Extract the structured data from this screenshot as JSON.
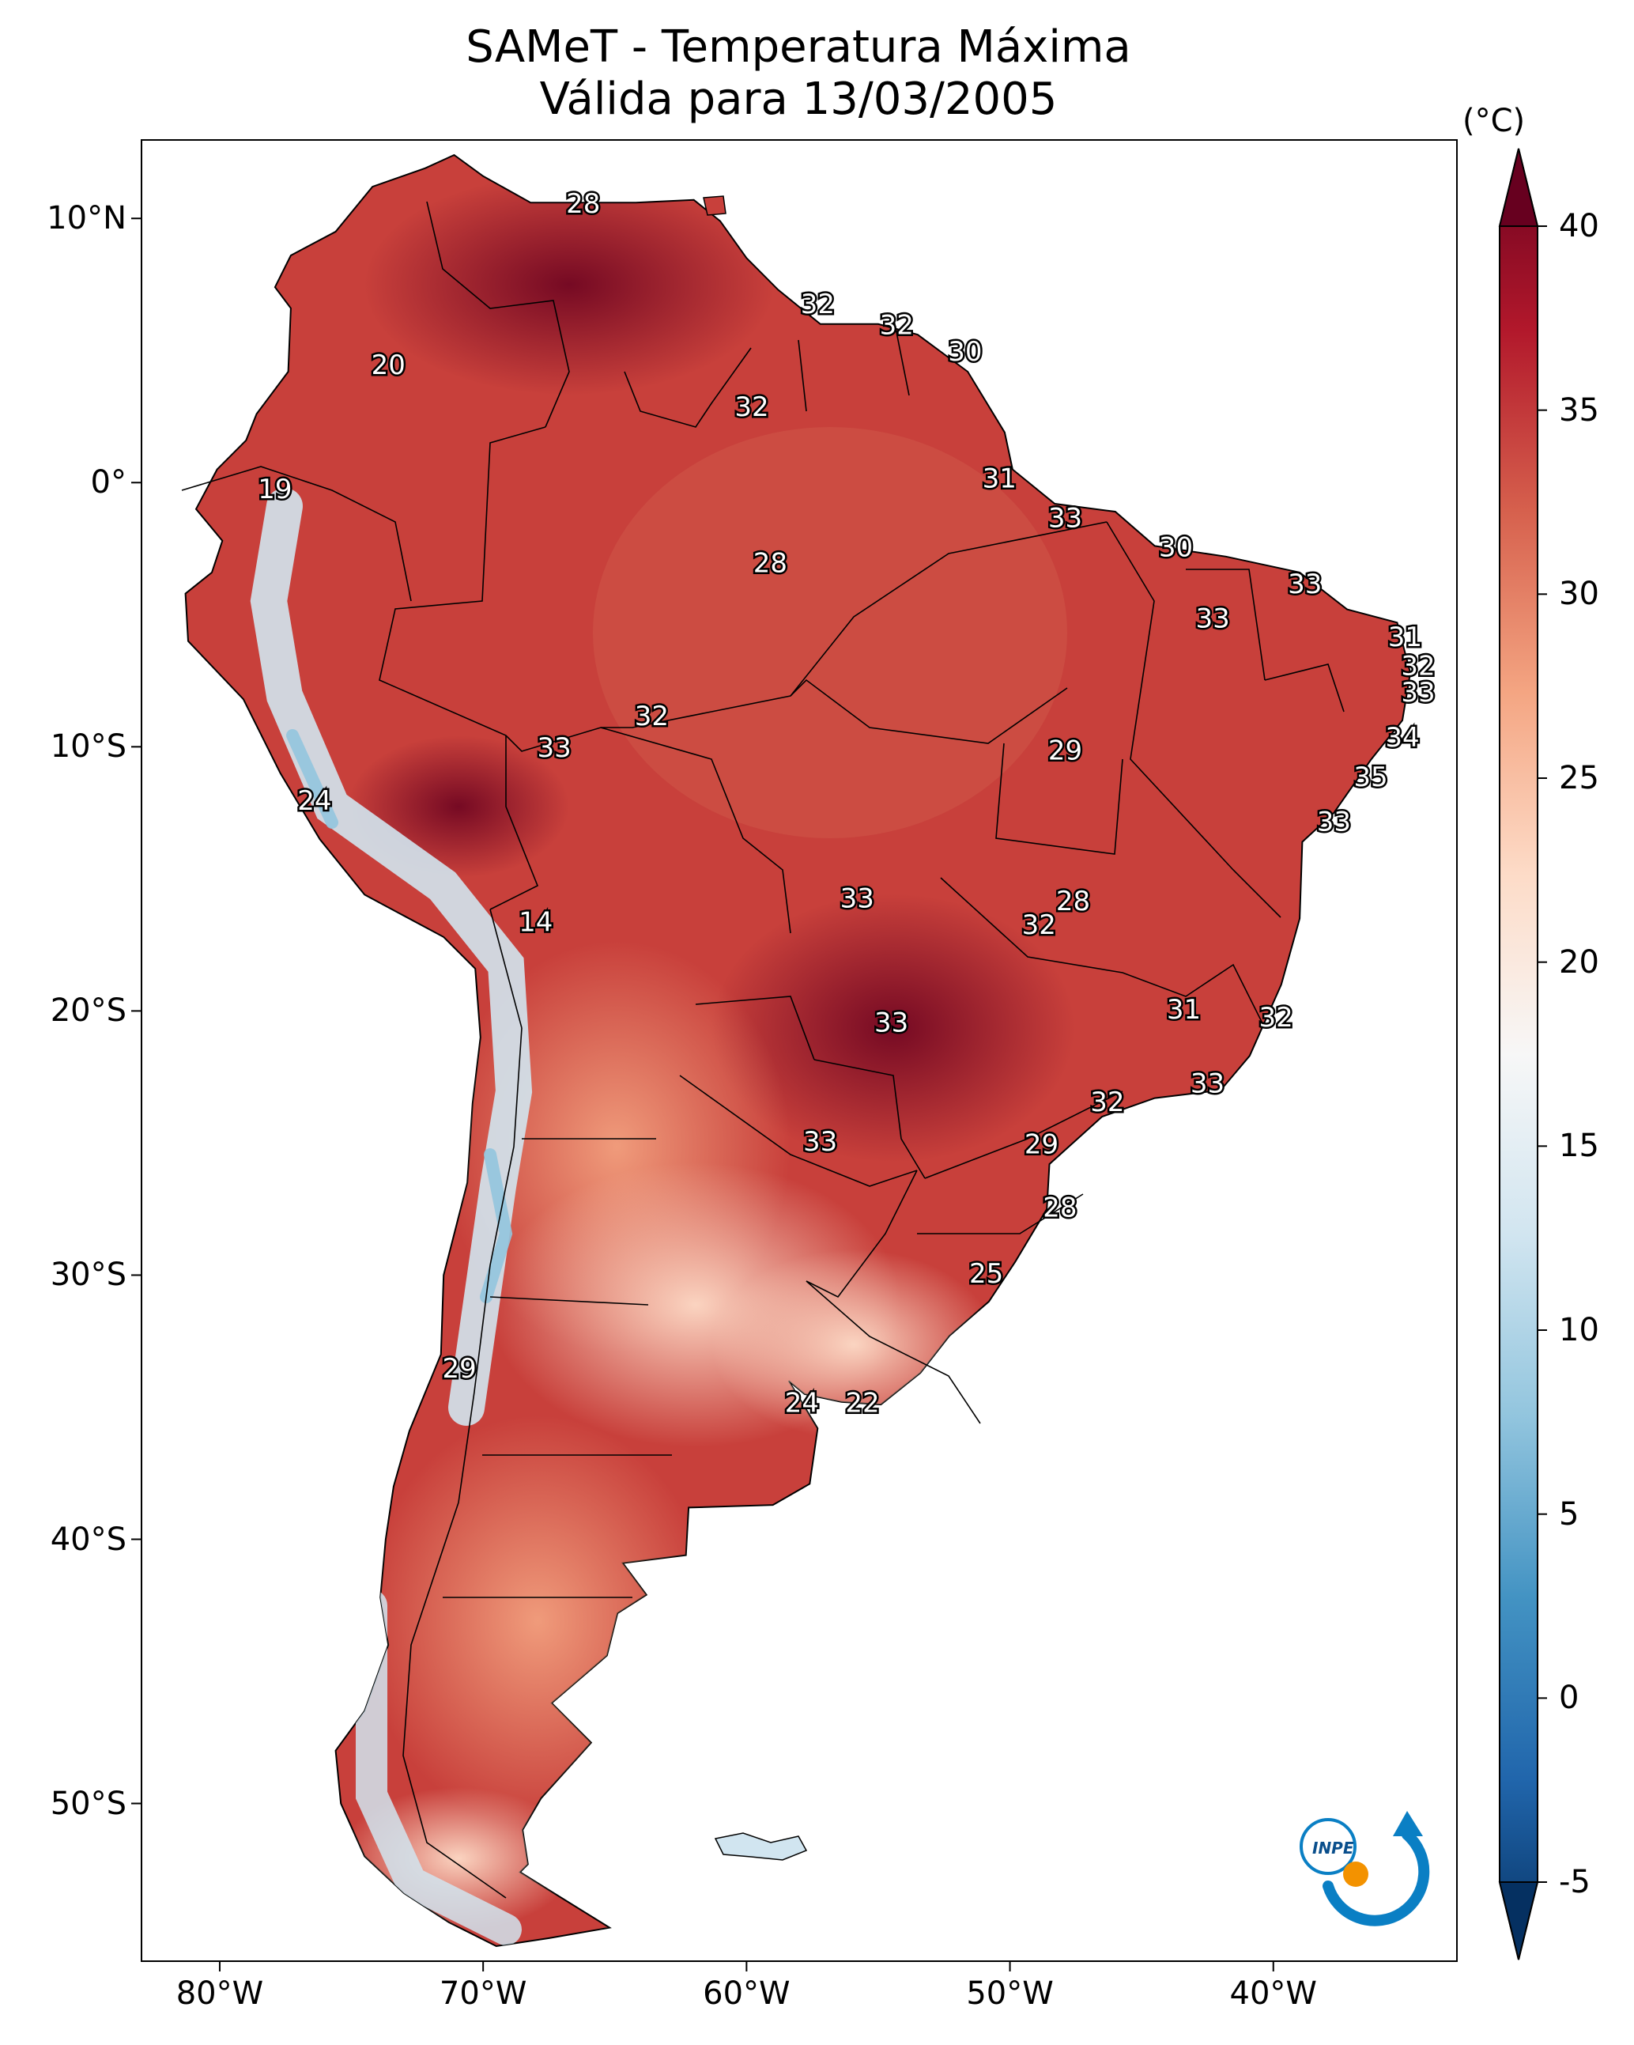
{
  "title": {
    "line1": "SAMeT - Temperatura Máxima",
    "line2": "Válida para 13/03/2005"
  },
  "map": {
    "lon_range": [
      -83,
      -33
    ],
    "lat_range": [
      -56,
      13
    ],
    "lat_ticks": [
      {
        "value": 10,
        "label": "10°N"
      },
      {
        "value": 0,
        "label": "0°"
      },
      {
        "value": -10,
        "label": "10°S"
      },
      {
        "value": -20,
        "label": "20°S"
      },
      {
        "value": -30,
        "label": "30°S"
      },
      {
        "value": -40,
        "label": "40°S"
      },
      {
        "value": -50,
        "label": "50°S"
      }
    ],
    "lon_ticks": [
      {
        "value": -80,
        "label": "80°W"
      },
      {
        "value": -70,
        "label": "70°W"
      },
      {
        "value": -60,
        "label": "60°W"
      },
      {
        "value": -50,
        "label": "50°W"
      },
      {
        "value": -40,
        "label": "40°W"
      }
    ],
    "point_labels": [
      {
        "text": "28",
        "lon": -66.2,
        "lat": 10.5
      },
      {
        "text": "32",
        "lon": -57.3,
        "lat": 6.7
      },
      {
        "text": "32",
        "lon": -54.3,
        "lat": 5.9
      },
      {
        "text": "30",
        "lon": -51.7,
        "lat": 4.9
      },
      {
        "text": "20",
        "lon": -73.6,
        "lat": 4.4
      },
      {
        "text": "32",
        "lon": -59.8,
        "lat": 2.8
      },
      {
        "text": "31",
        "lon": -50.4,
        "lat": 0.1
      },
      {
        "text": "19",
        "lon": -77.9,
        "lat": -0.3
      },
      {
        "text": "33",
        "lon": -47.9,
        "lat": -1.4
      },
      {
        "text": "30",
        "lon": -43.7,
        "lat": -2.5
      },
      {
        "text": "28",
        "lon": -59.1,
        "lat": -3.1
      },
      {
        "text": "33",
        "lon": -38.8,
        "lat": -3.9
      },
      {
        "text": "33",
        "lon": -42.3,
        "lat": -5.2
      },
      {
        "text": "31",
        "lon": -35.0,
        "lat": -5.9
      },
      {
        "text": "32",
        "lon": -34.5,
        "lat": -7.0
      },
      {
        "text": "33",
        "lon": -34.5,
        "lat": -8.0
      },
      {
        "text": "32",
        "lon": -63.6,
        "lat": -8.9
      },
      {
        "text": "34",
        "lon": -35.1,
        "lat": -9.7
      },
      {
        "text": "33",
        "lon": -67.3,
        "lat": -10.1
      },
      {
        "text": "29",
        "lon": -47.9,
        "lat": -10.2
      },
      {
        "text": "35",
        "lon": -36.3,
        "lat": -11.2
      },
      {
        "text": "24",
        "lon": -76.4,
        "lat": -12.1
      },
      {
        "text": "33",
        "lon": -37.7,
        "lat": -12.9
      },
      {
        "text": "33",
        "lon": -55.8,
        "lat": -15.8
      },
      {
        "text": "28",
        "lon": -47.6,
        "lat": -15.9
      },
      {
        "text": "14",
        "lon": -68.0,
        "lat": -16.7
      },
      {
        "text": "32",
        "lon": -48.9,
        "lat": -16.8
      },
      {
        "text": "31",
        "lon": -43.4,
        "lat": -20.0
      },
      {
        "text": "32",
        "lon": -39.9,
        "lat": -20.3
      },
      {
        "text": "33",
        "lon": -54.5,
        "lat": -20.5
      },
      {
        "text": "33",
        "lon": -42.5,
        "lat": -22.8
      },
      {
        "text": "32",
        "lon": -46.3,
        "lat": -23.5
      },
      {
        "text": "33",
        "lon": -57.2,
        "lat": -25.0
      },
      {
        "text": "29",
        "lon": -48.8,
        "lat": -25.1
      },
      {
        "text": "28",
        "lon": -48.1,
        "lat": -27.5
      },
      {
        "text": "25",
        "lon": -50.9,
        "lat": -30.0
      },
      {
        "text": "29",
        "lon": -70.9,
        "lat": -33.6
      },
      {
        "text": "24",
        "lon": -57.9,
        "lat": -34.9
      },
      {
        "text": "22",
        "lon": -55.6,
        "lat": -34.9
      }
    ]
  },
  "colorbar": {
    "unit": "(°C)",
    "min": -5,
    "max": 40,
    "ticks": [
      {
        "value": 40,
        "label": "40"
      },
      {
        "value": 35,
        "label": "35"
      },
      {
        "value": 30,
        "label": "30"
      },
      {
        "value": 25,
        "label": "25"
      },
      {
        "value": 20,
        "label": "20"
      },
      {
        "value": 15,
        "label": "15"
      },
      {
        "value": 10,
        "label": "10"
      },
      {
        "value": 5,
        "label": "5"
      },
      {
        "value": 0,
        "label": "0"
      },
      {
        "value": -5,
        "label": "-5"
      }
    ],
    "colors": [
      "#053061",
      "#2166ac",
      "#4393c3",
      "#92c5de",
      "#d1e5f0",
      "#f7f7f7",
      "#fddbc7",
      "#f4a582",
      "#d6604d",
      "#b2182b",
      "#67001f"
    ]
  },
  "logo": {
    "text": "INPE",
    "blue": "#0a7fc4",
    "orange": "#f39200"
  }
}
